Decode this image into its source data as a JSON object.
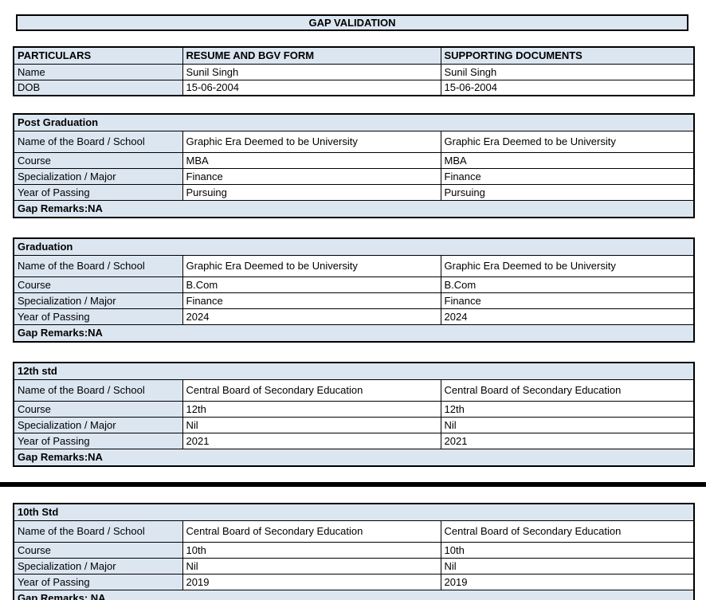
{
  "title": "GAP VALIDATION",
  "colors": {
    "header_bg": "#dce6f1",
    "border": "#000000",
    "cell_bg": "#ffffff"
  },
  "summary_table": {
    "headers": [
      "PARTICULARS",
      "RESUME AND BGV FORM",
      "SUPPORTING DOCUMENTS"
    ],
    "rows": [
      {
        "label": "Name",
        "resume": "Sunil Singh",
        "supporting": "Sunil Singh"
      },
      {
        "label": "DOB",
        "resume": "15-06-2004",
        "supporting": "15-06-2004"
      }
    ]
  },
  "sections": [
    {
      "title": "Post Graduation",
      "rows": [
        {
          "label": "Name of the Board / School",
          "resume": "Graphic Era Deemed to be University",
          "supporting": "Graphic Era Deemed to be University"
        },
        {
          "label": "Course",
          "resume": "MBA",
          "supporting": "MBA"
        },
        {
          "label": "Specialization / Major",
          "resume": "Finance",
          "supporting": "Finance"
        },
        {
          "label": "Year of Passing",
          "resume": "Pursuing",
          "supporting": "Pursuing"
        }
      ],
      "gap_remarks": "Gap Remarks:NA"
    },
    {
      "title": "Graduation",
      "rows": [
        {
          "label": "Name of the Board / School",
          "resume": "Graphic Era Deemed to be University",
          "supporting": "Graphic Era Deemed to be University"
        },
        {
          "label": "Course",
          "resume": "B.Com",
          "supporting": "B.Com"
        },
        {
          "label": "Specialization / Major",
          "resume": "Finance",
          "supporting": "Finance"
        },
        {
          "label": "Year of Passing",
          "resume": "2024",
          "supporting": "2024"
        }
      ],
      "gap_remarks": "Gap Remarks:NA"
    },
    {
      "title": "12th std",
      "rows": [
        {
          "label": "Name of the Board / School",
          "resume": "Central Board of Secondary Education",
          "supporting": "Central Board of Secondary Education"
        },
        {
          "label": "Course",
          "resume": "12th",
          "supporting": "12th"
        },
        {
          "label": "Specialization / Major",
          "resume": "Nil",
          "supporting": "Nil"
        },
        {
          "label": "Year of Passing",
          "resume": "2021",
          "supporting": "2021"
        }
      ],
      "gap_remarks": "Gap Remarks:NA"
    },
    {
      "title": "10th Std",
      "rows": [
        {
          "label": "Name of the Board / School",
          "resume": "Central Board of Secondary Education",
          "supporting": "Central Board of Secondary Education"
        },
        {
          "label": "Course",
          "resume": "10th",
          "supporting": "10th"
        },
        {
          "label": "Specialization / Major",
          "resume": "Nil",
          "supporting": "Nil"
        },
        {
          "label": "Year of Passing",
          "resume": "2019",
          "supporting": "2019"
        }
      ],
      "gap_remarks": "Gap Remarks: NA"
    }
  ]
}
